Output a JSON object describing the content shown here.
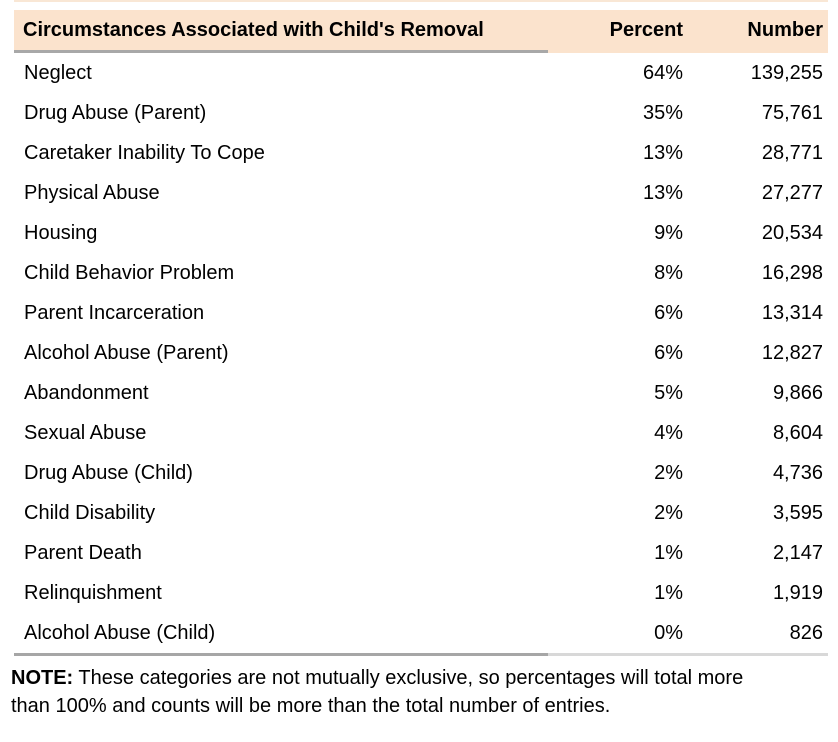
{
  "chart_data": {
    "type": "table",
    "title": "Circumstances Associated with Child's Removal",
    "columns": [
      "Circumstances Associated with Child's Removal",
      "Percent",
      "Number"
    ],
    "rows": [
      [
        "Neglect",
        "64%",
        "139,255"
      ],
      [
        "Drug Abuse (Parent)",
        "35%",
        "75,761"
      ],
      [
        "Caretaker Inability To Cope",
        "13%",
        "28,771"
      ],
      [
        "Physical Abuse",
        "13%",
        "27,277"
      ],
      [
        "Housing",
        "9%",
        "20,534"
      ],
      [
        "Child Behavior Problem",
        "8%",
        "16,298"
      ],
      [
        "Parent Incarceration",
        "6%",
        "13,314"
      ],
      [
        "Alcohol Abuse (Parent)",
        "6%",
        "12,827"
      ],
      [
        "Abandonment",
        "5%",
        "9,866"
      ],
      [
        "Sexual Abuse",
        "4%",
        "8,604"
      ],
      [
        "Drug Abuse (Child)",
        "2%",
        "4,736"
      ],
      [
        "Child Disability",
        "2%",
        "3,595"
      ],
      [
        "Parent Death",
        "1%",
        "2,147"
      ],
      [
        "Relinquishment",
        "1%",
        "1,919"
      ],
      [
        "Alcohol Abuse (Child)",
        "0%",
        "826"
      ]
    ],
    "percent_values": [
      64,
      35,
      13,
      13,
      9,
      8,
      6,
      6,
      5,
      4,
      2,
      2,
      1,
      1,
      0
    ],
    "number_values": [
      139255,
      75761,
      28771,
      27277,
      20534,
      16298,
      13314,
      12827,
      9866,
      8604,
      4736,
      3595,
      2147,
      1919,
      826
    ],
    "legend_position": "none",
    "grid": false
  },
  "table": {
    "headers": {
      "circumstance": "Circumstances Associated with Child's Removal",
      "percent": "Percent",
      "number": "Number"
    },
    "rows": [
      {
        "circumstance": "Neglect",
        "percent": "64%",
        "number": "139,255"
      },
      {
        "circumstance": "Drug Abuse (Parent)",
        "percent": "35%",
        "number": "75,761"
      },
      {
        "circumstance": "Caretaker Inability To Cope",
        "percent": "13%",
        "number": "28,771"
      },
      {
        "circumstance": "Physical Abuse",
        "percent": "13%",
        "number": "27,277"
      },
      {
        "circumstance": "Housing",
        "percent": "9%",
        "number": "20,534"
      },
      {
        "circumstance": "Child Behavior Problem",
        "percent": "8%",
        "number": "16,298"
      },
      {
        "circumstance": "Parent Incarceration",
        "percent": "6%",
        "number": "13,314"
      },
      {
        "circumstance": "Alcohol Abuse (Parent)",
        "percent": "6%",
        "number": "12,827"
      },
      {
        "circumstance": "Abandonment",
        "percent": "5%",
        "number": "9,866"
      },
      {
        "circumstance": "Sexual Abuse",
        "percent": "4%",
        "number": "8,604"
      },
      {
        "circumstance": "Drug Abuse (Child)",
        "percent": "2%",
        "number": "4,736"
      },
      {
        "circumstance": "Child Disability",
        "percent": "2%",
        "number": "3,595"
      },
      {
        "circumstance": "Parent Death",
        "percent": "1%",
        "number": "2,147"
      },
      {
        "circumstance": "Relinquishment",
        "percent": "1%",
        "number": "1,919"
      },
      {
        "circumstance": "Alcohol Abuse (Child)",
        "percent": "0%",
        "number": "826"
      }
    ]
  },
  "note": {
    "prefix": "NOTE:",
    "line1": "These categories are not mutually exclusive, so percentages will total more",
    "line2": "than 100% and counts will be more than the total number of entries."
  },
  "colors": {
    "header_background": "#fbe3cd",
    "header_underline_gray": "#a8a8a8",
    "bottom_rule_left": "#a6a6a6",
    "bottom_rule_right": "#d8d8d8",
    "top_rule": "#f9e7d5",
    "text": "#000000",
    "page_background": "#ffffff"
  }
}
